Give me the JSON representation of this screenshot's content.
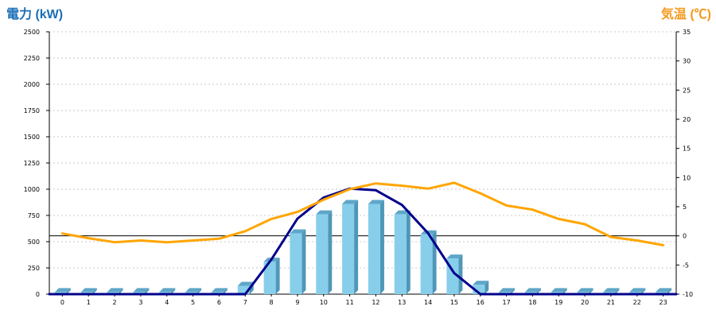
{
  "chart_data": {
    "type": "bar",
    "left_axis_title": "電力 (kW)",
    "right_axis_title": "気温 (℃)",
    "categories": [
      "0",
      "1",
      "2",
      "3",
      "4",
      "5",
      "6",
      "7",
      "8",
      "9",
      "10",
      "11",
      "12",
      "13",
      "14",
      "15",
      "16",
      "17",
      "18",
      "19",
      "20",
      "21",
      "22",
      "23"
    ],
    "y_left": {
      "min": 0,
      "max": 2500,
      "ticks": [
        0,
        250,
        500,
        750,
        1000,
        1250,
        1500,
        1750,
        2000,
        2250,
        2500
      ]
    },
    "y_right": {
      "min": -10,
      "max": 35,
      "ticks": [
        -10,
        -5,
        0,
        5,
        10,
        15,
        20,
        25,
        30,
        35
      ]
    },
    "grid": true,
    "series": [
      {
        "kind": "bar",
        "axis": "left",
        "color": "#87ceeb",
        "values": [
          20,
          20,
          20,
          20,
          20,
          20,
          20,
          80,
          310,
          580,
          760,
          860,
          860,
          760,
          570,
          340,
          90,
          20,
          20,
          20,
          20,
          20,
          20,
          20
        ]
      },
      {
        "kind": "line",
        "axis": "left",
        "color": "#00008b",
        "values": [
          0,
          0,
          0,
          0,
          0,
          0,
          0,
          0,
          330,
          720,
          920,
          1005,
          990,
          850,
          580,
          200,
          0,
          0,
          0,
          0,
          0,
          0,
          0,
          0
        ]
      },
      {
        "kind": "line",
        "axis": "right",
        "color": "#ffa500",
        "values": [
          0.4,
          -0.4,
          -1.1,
          -0.8,
          -1.1,
          -0.8,
          -0.5,
          0.8,
          2.9,
          4.1,
          6.2,
          8,
          9,
          8.6,
          8.1,
          9.1,
          7.3,
          5.2,
          4.5,
          2.9,
          2,
          -0.2,
          -0.8,
          -1.6
        ]
      }
    ],
    "colors": {
      "title_left": "#1a6fb5",
      "title_right": "#f39a1e",
      "bar_face": "#87ceeb",
      "bar_side": "#4f97b8",
      "bar_top": "#5fa6c8",
      "zero_line": "#000000",
      "grid": "#c8c8c8"
    }
  }
}
